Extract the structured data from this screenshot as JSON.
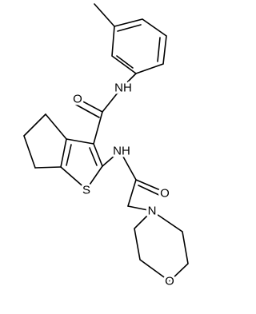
{
  "atom_labels": [
    "O",
    "NH",
    "S",
    "NH",
    "O",
    "N",
    "O"
  ]
}
